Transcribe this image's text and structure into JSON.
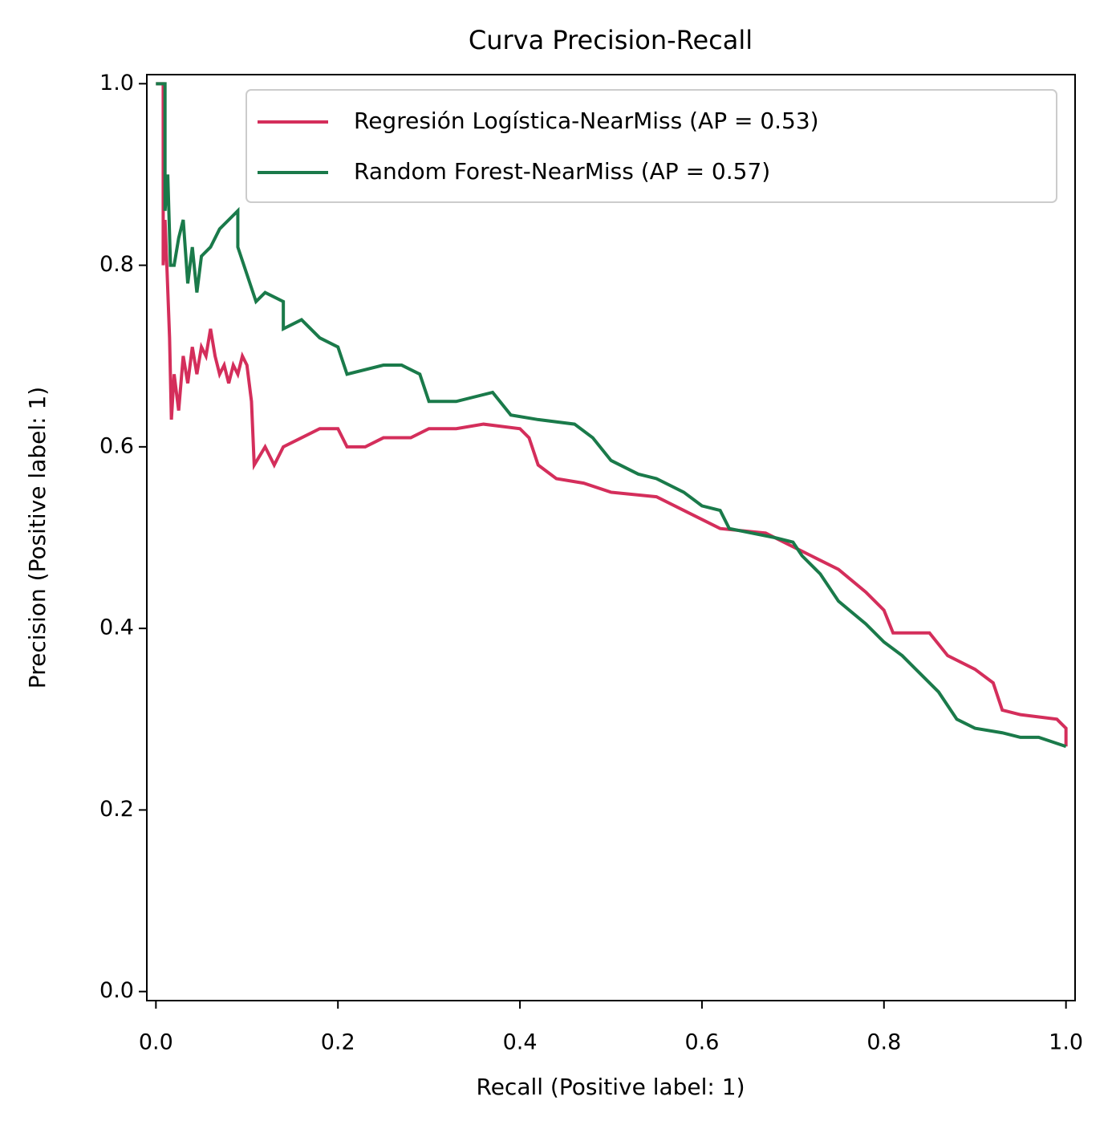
{
  "chart_data": {
    "type": "line",
    "title": "Curva Precision-Recall",
    "x_label": "Recall (Positive label: 1)",
    "y_label": "Precision (Positive label: 1)",
    "xlim": [
      -0.01,
      1.01
    ],
    "ylim": [
      -0.01,
      1.01
    ],
    "xticks": [
      {
        "value": 0,
        "label": "0.0"
      },
      0.2,
      0.4,
      0.6,
      0.8,
      {
        "value": 1,
        "label": "1.0"
      }
    ],
    "yticks": [
      {
        "value": 0,
        "label": "0.0"
      },
      0.2,
      0.4,
      0.6,
      0.8,
      {
        "value": 1,
        "label": "1.0"
      }
    ],
    "legend": "upper right",
    "series": [
      {
        "name": "Regresión Logística-NearMiss (AP = 0.53)",
        "color": "#d42e5b",
        "x": [
          0.0,
          0.008,
          0.008,
          0.01,
          0.012,
          0.015,
          0.017,
          0.02,
          0.025,
          0.03,
          0.035,
          0.04,
          0.045,
          0.05,
          0.055,
          0.06,
          0.065,
          0.07,
          0.075,
          0.08,
          0.085,
          0.09,
          0.095,
          0.1,
          0.105,
          0.108,
          0.12,
          0.13,
          0.14,
          0.16,
          0.18,
          0.2,
          0.21,
          0.23,
          0.25,
          0.28,
          0.3,
          0.33,
          0.36,
          0.4,
          0.41,
          0.42,
          0.44,
          0.47,
          0.5,
          0.55,
          0.58,
          0.62,
          0.67,
          0.7,
          0.72,
          0.75,
          0.78,
          0.8,
          0.81,
          0.85,
          0.87,
          0.9,
          0.92,
          0.93,
          0.95,
          0.99,
          1.0,
          1.0
        ],
        "values": [
          1.0,
          1.0,
          0.8,
          0.85,
          0.8,
          0.72,
          0.63,
          0.68,
          0.64,
          0.7,
          0.67,
          0.71,
          0.68,
          0.71,
          0.7,
          0.73,
          0.7,
          0.68,
          0.69,
          0.67,
          0.69,
          0.68,
          0.7,
          0.69,
          0.65,
          0.58,
          0.6,
          0.58,
          0.6,
          0.61,
          0.62,
          0.62,
          0.6,
          0.6,
          0.61,
          0.61,
          0.62,
          0.62,
          0.625,
          0.62,
          0.61,
          0.58,
          0.565,
          0.56,
          0.55,
          0.545,
          0.53,
          0.51,
          0.505,
          0.49,
          0.48,
          0.465,
          0.44,
          0.42,
          0.395,
          0.395,
          0.37,
          0.355,
          0.34,
          0.31,
          0.305,
          0.3,
          0.29,
          0.27
        ]
      },
      {
        "name": "Random Forest-NearMiss (AP = 0.57)",
        "color": "#1a7a4a",
        "x": [
          0.0,
          0.01,
          0.01,
          0.013,
          0.016,
          0.02,
          0.025,
          0.03,
          0.035,
          0.04,
          0.045,
          0.05,
          0.06,
          0.07,
          0.08,
          0.09,
          0.09,
          0.1,
          0.11,
          0.12,
          0.14,
          0.14,
          0.16,
          0.18,
          0.2,
          0.21,
          0.25,
          0.27,
          0.29,
          0.3,
          0.33,
          0.37,
          0.39,
          0.42,
          0.46,
          0.48,
          0.5,
          0.53,
          0.55,
          0.58,
          0.6,
          0.62,
          0.63,
          0.68,
          0.7,
          0.71,
          0.73,
          0.75,
          0.78,
          0.8,
          0.82,
          0.84,
          0.86,
          0.88,
          0.9,
          0.93,
          0.95,
          0.97,
          1.0
        ],
        "values": [
          1.0,
          1.0,
          0.86,
          0.9,
          0.8,
          0.8,
          0.83,
          0.85,
          0.78,
          0.82,
          0.77,
          0.81,
          0.82,
          0.84,
          0.85,
          0.86,
          0.82,
          0.79,
          0.76,
          0.77,
          0.76,
          0.73,
          0.74,
          0.72,
          0.71,
          0.68,
          0.69,
          0.69,
          0.68,
          0.65,
          0.65,
          0.66,
          0.635,
          0.63,
          0.625,
          0.61,
          0.585,
          0.57,
          0.565,
          0.55,
          0.535,
          0.53,
          0.51,
          0.5,
          0.495,
          0.48,
          0.46,
          0.43,
          0.405,
          0.385,
          0.37,
          0.35,
          0.33,
          0.3,
          0.29,
          0.285,
          0.28,
          0.28,
          0.27
        ]
      }
    ]
  }
}
